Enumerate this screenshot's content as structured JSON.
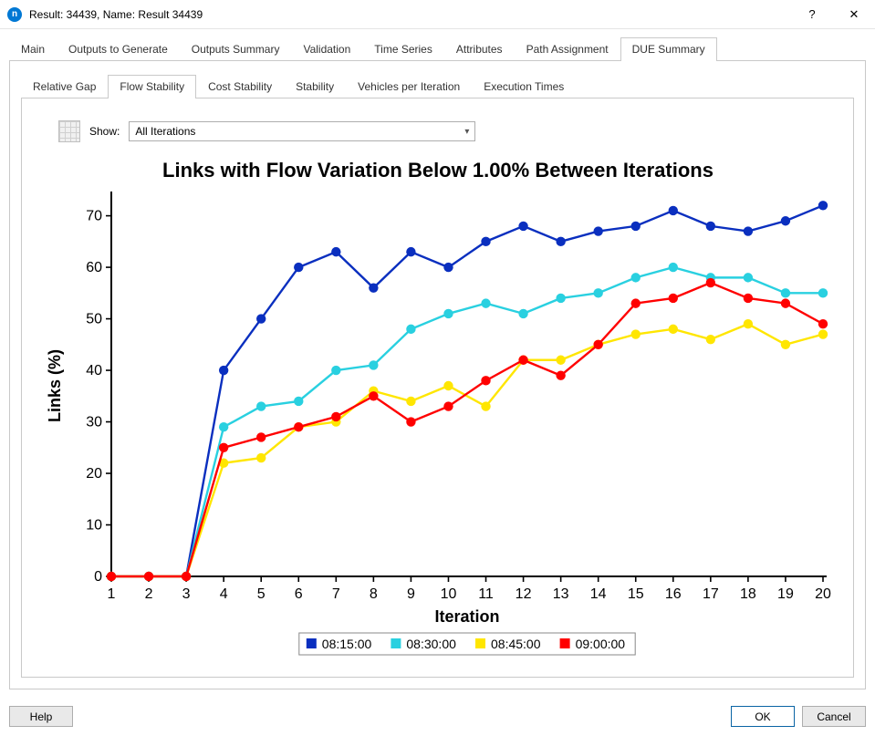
{
  "window": {
    "title": "Result: 34439, Name: Result 34439",
    "help_glyph": "?",
    "close_glyph": "✕"
  },
  "tabs_main": {
    "items": [
      {
        "label": "Main"
      },
      {
        "label": "Outputs to Generate"
      },
      {
        "label": "Outputs Summary"
      },
      {
        "label": "Validation"
      },
      {
        "label": "Time Series"
      },
      {
        "label": "Attributes"
      },
      {
        "label": "Path Assignment"
      },
      {
        "label": "DUE Summary"
      }
    ],
    "active_index": 7
  },
  "tabs_sub": {
    "items": [
      {
        "label": "Relative Gap"
      },
      {
        "label": "Flow Stability"
      },
      {
        "label": "Cost Stability"
      },
      {
        "label": "Stability"
      },
      {
        "label": "Vehicles per Iteration"
      },
      {
        "label": "Execution Times"
      }
    ],
    "active_index": 1
  },
  "controls": {
    "show_label": "Show:",
    "select_value": "All Iterations"
  },
  "chart": {
    "type": "line",
    "title": "Links with Flow Variation Below 1.00% Between Iterations",
    "title_fontsize": 22,
    "title_fontweight": "bold",
    "xlabel": "Iteration",
    "ylabel": "Links (%)",
    "axis_label_fontsize": 18,
    "tick_fontsize": 16,
    "x_values": [
      1,
      2,
      3,
      4,
      5,
      6,
      7,
      8,
      9,
      10,
      11,
      12,
      13,
      14,
      15,
      16,
      17,
      18,
      19,
      20
    ],
    "xlim": [
      1,
      20
    ],
    "ylim": [
      0,
      74
    ],
    "yticks": [
      0,
      10,
      20,
      30,
      40,
      50,
      60,
      70
    ],
    "axis_color": "#000000",
    "tick_color": "#000000",
    "background_color": "#ffffff",
    "line_width": 2.4,
    "marker_radius": 5.2,
    "series": [
      {
        "name": "08:15:00",
        "color": "#0a2fbf",
        "y": [
          0,
          0,
          0,
          40,
          50,
          60,
          63,
          56,
          63,
          60,
          65,
          68,
          65,
          67,
          68,
          71,
          68,
          67,
          69,
          72
        ]
      },
      {
        "name": "08:30:00",
        "color": "#29d0e0",
        "y": [
          0,
          0,
          0,
          29,
          33,
          34,
          40,
          41,
          48,
          51,
          53,
          51,
          54,
          55,
          58,
          60,
          58,
          58,
          55,
          55
        ]
      },
      {
        "name": "08:45:00",
        "color": "#ffe600",
        "y": [
          0,
          0,
          0,
          22,
          23,
          29,
          30,
          36,
          34,
          37,
          33,
          42,
          42,
          45,
          47,
          48,
          46,
          49,
          45,
          47
        ]
      },
      {
        "name": "09:00:00",
        "color": "#ff0000",
        "y": [
          0,
          0,
          0,
          25,
          27,
          29,
          31,
          35,
          30,
          33,
          38,
          42,
          39,
          45,
          53,
          54,
          57,
          54,
          53,
          49
        ]
      }
    ],
    "legend": {
      "border_color": "#888888",
      "swatch_size": 11,
      "fontsize": 14
    }
  },
  "footer": {
    "help_label": "Help",
    "ok_label": "OK",
    "cancel_label": "Cancel"
  }
}
